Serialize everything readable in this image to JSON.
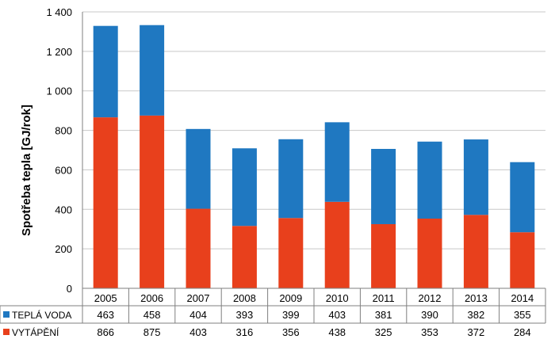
{
  "chart_data": {
    "type": "bar",
    "stacked": true,
    "ylabel": "Spotřeba tepla  [GJ/rok]",
    "ylim": [
      0,
      1400
    ],
    "yticks": [
      0,
      200,
      400,
      600,
      800,
      1000,
      1200,
      1400
    ],
    "ytick_labels": [
      "0",
      "200",
      "400",
      "600",
      "800",
      "1 000",
      "1 200",
      "1 400"
    ],
    "grid": true,
    "categories": [
      "2005",
      "2006",
      "2007",
      "2008",
      "2009",
      "2010",
      "2011",
      "2012",
      "2013",
      "2014"
    ],
    "series": [
      {
        "name": "VYTÁPĚNÍ",
        "color": "#e8401c",
        "values": [
          866,
          875,
          403,
          316,
          356,
          438,
          325,
          353,
          372,
          284
        ]
      },
      {
        "name": "TEPLÁ VODA",
        "color": "#1f78c1",
        "values": [
          463,
          458,
          404,
          393,
          399,
          403,
          381,
          390,
          382,
          355
        ]
      }
    ],
    "data_table": {
      "row_order": [
        "TEPLÁ VODA",
        "VYTÁPĚNÍ"
      ]
    }
  }
}
